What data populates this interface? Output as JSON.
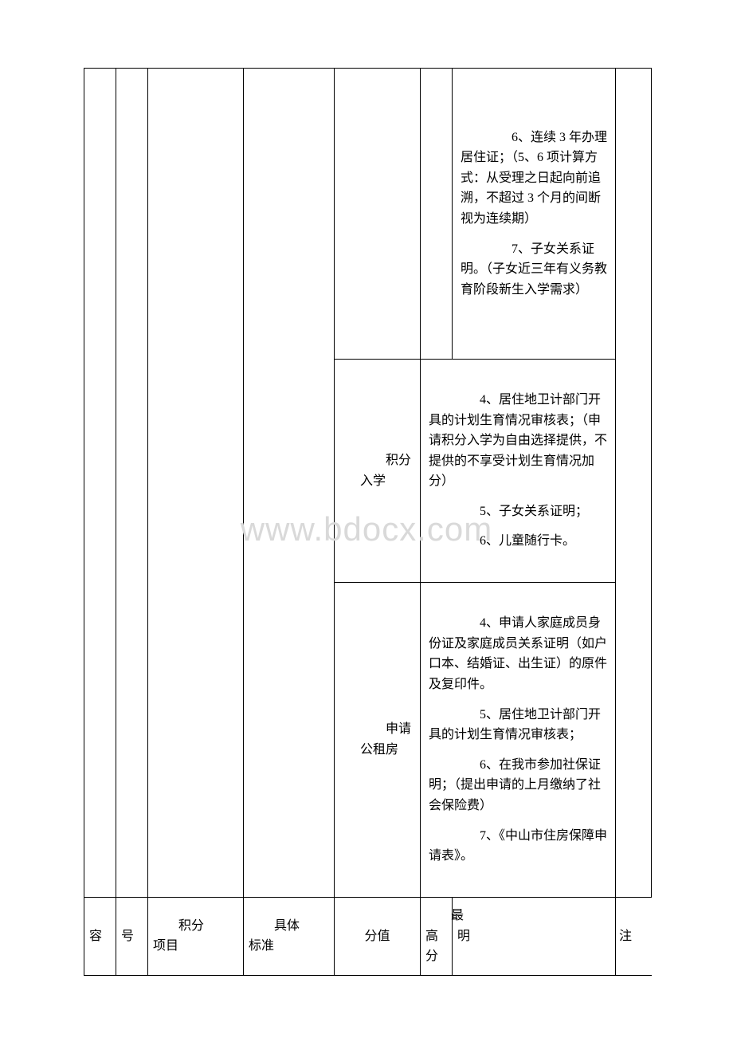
{
  "watermark": "www.bdocx.com",
  "section1": {
    "item6": "　　6、连续 3 年办理居住证；（5、6 项计算方式：从受理之日起向前追溯，不超过 3 个月的间断视为连续期）",
    "item7": "　　7、子女关系证明。（子女近三年有义务教育阶段新生入学需求）"
  },
  "section2": {
    "label": "　　积分入学",
    "item4": "　　4、居住地卫计部门开具的计划生育情况审核表；（申请积分入学为自由选择提供，不提供的不享受计划生育情况加分）",
    "item5": "　　5、子女关系证明；",
    "item6": "　　6、儿童随行卡。"
  },
  "section3": {
    "label": "　　申请公租房",
    "item4": "　　4、申请人家庭成员身份证及家庭成员关系证明（如户口本、结婚证、出生证）的原件及复印件。",
    "item5": "　　5、居住地卫计部门开具的计划生育情况审核表；",
    "item6": "　　6、在我市参加社保证明；（提出申请的上月缴纳了社会保险费）",
    "item7": "　　7、《中山市住房保障申请表》。"
  },
  "headers": {
    "col1": "容",
    "col2": "号",
    "col3_line1": "积分",
    "col3_line2": "项目",
    "col4_line1": "具体",
    "col4_line2": "标准",
    "col5": "分值",
    "col6_line1": "最高",
    "col6_line2": "分",
    "col7": "明",
    "col8": "注"
  }
}
